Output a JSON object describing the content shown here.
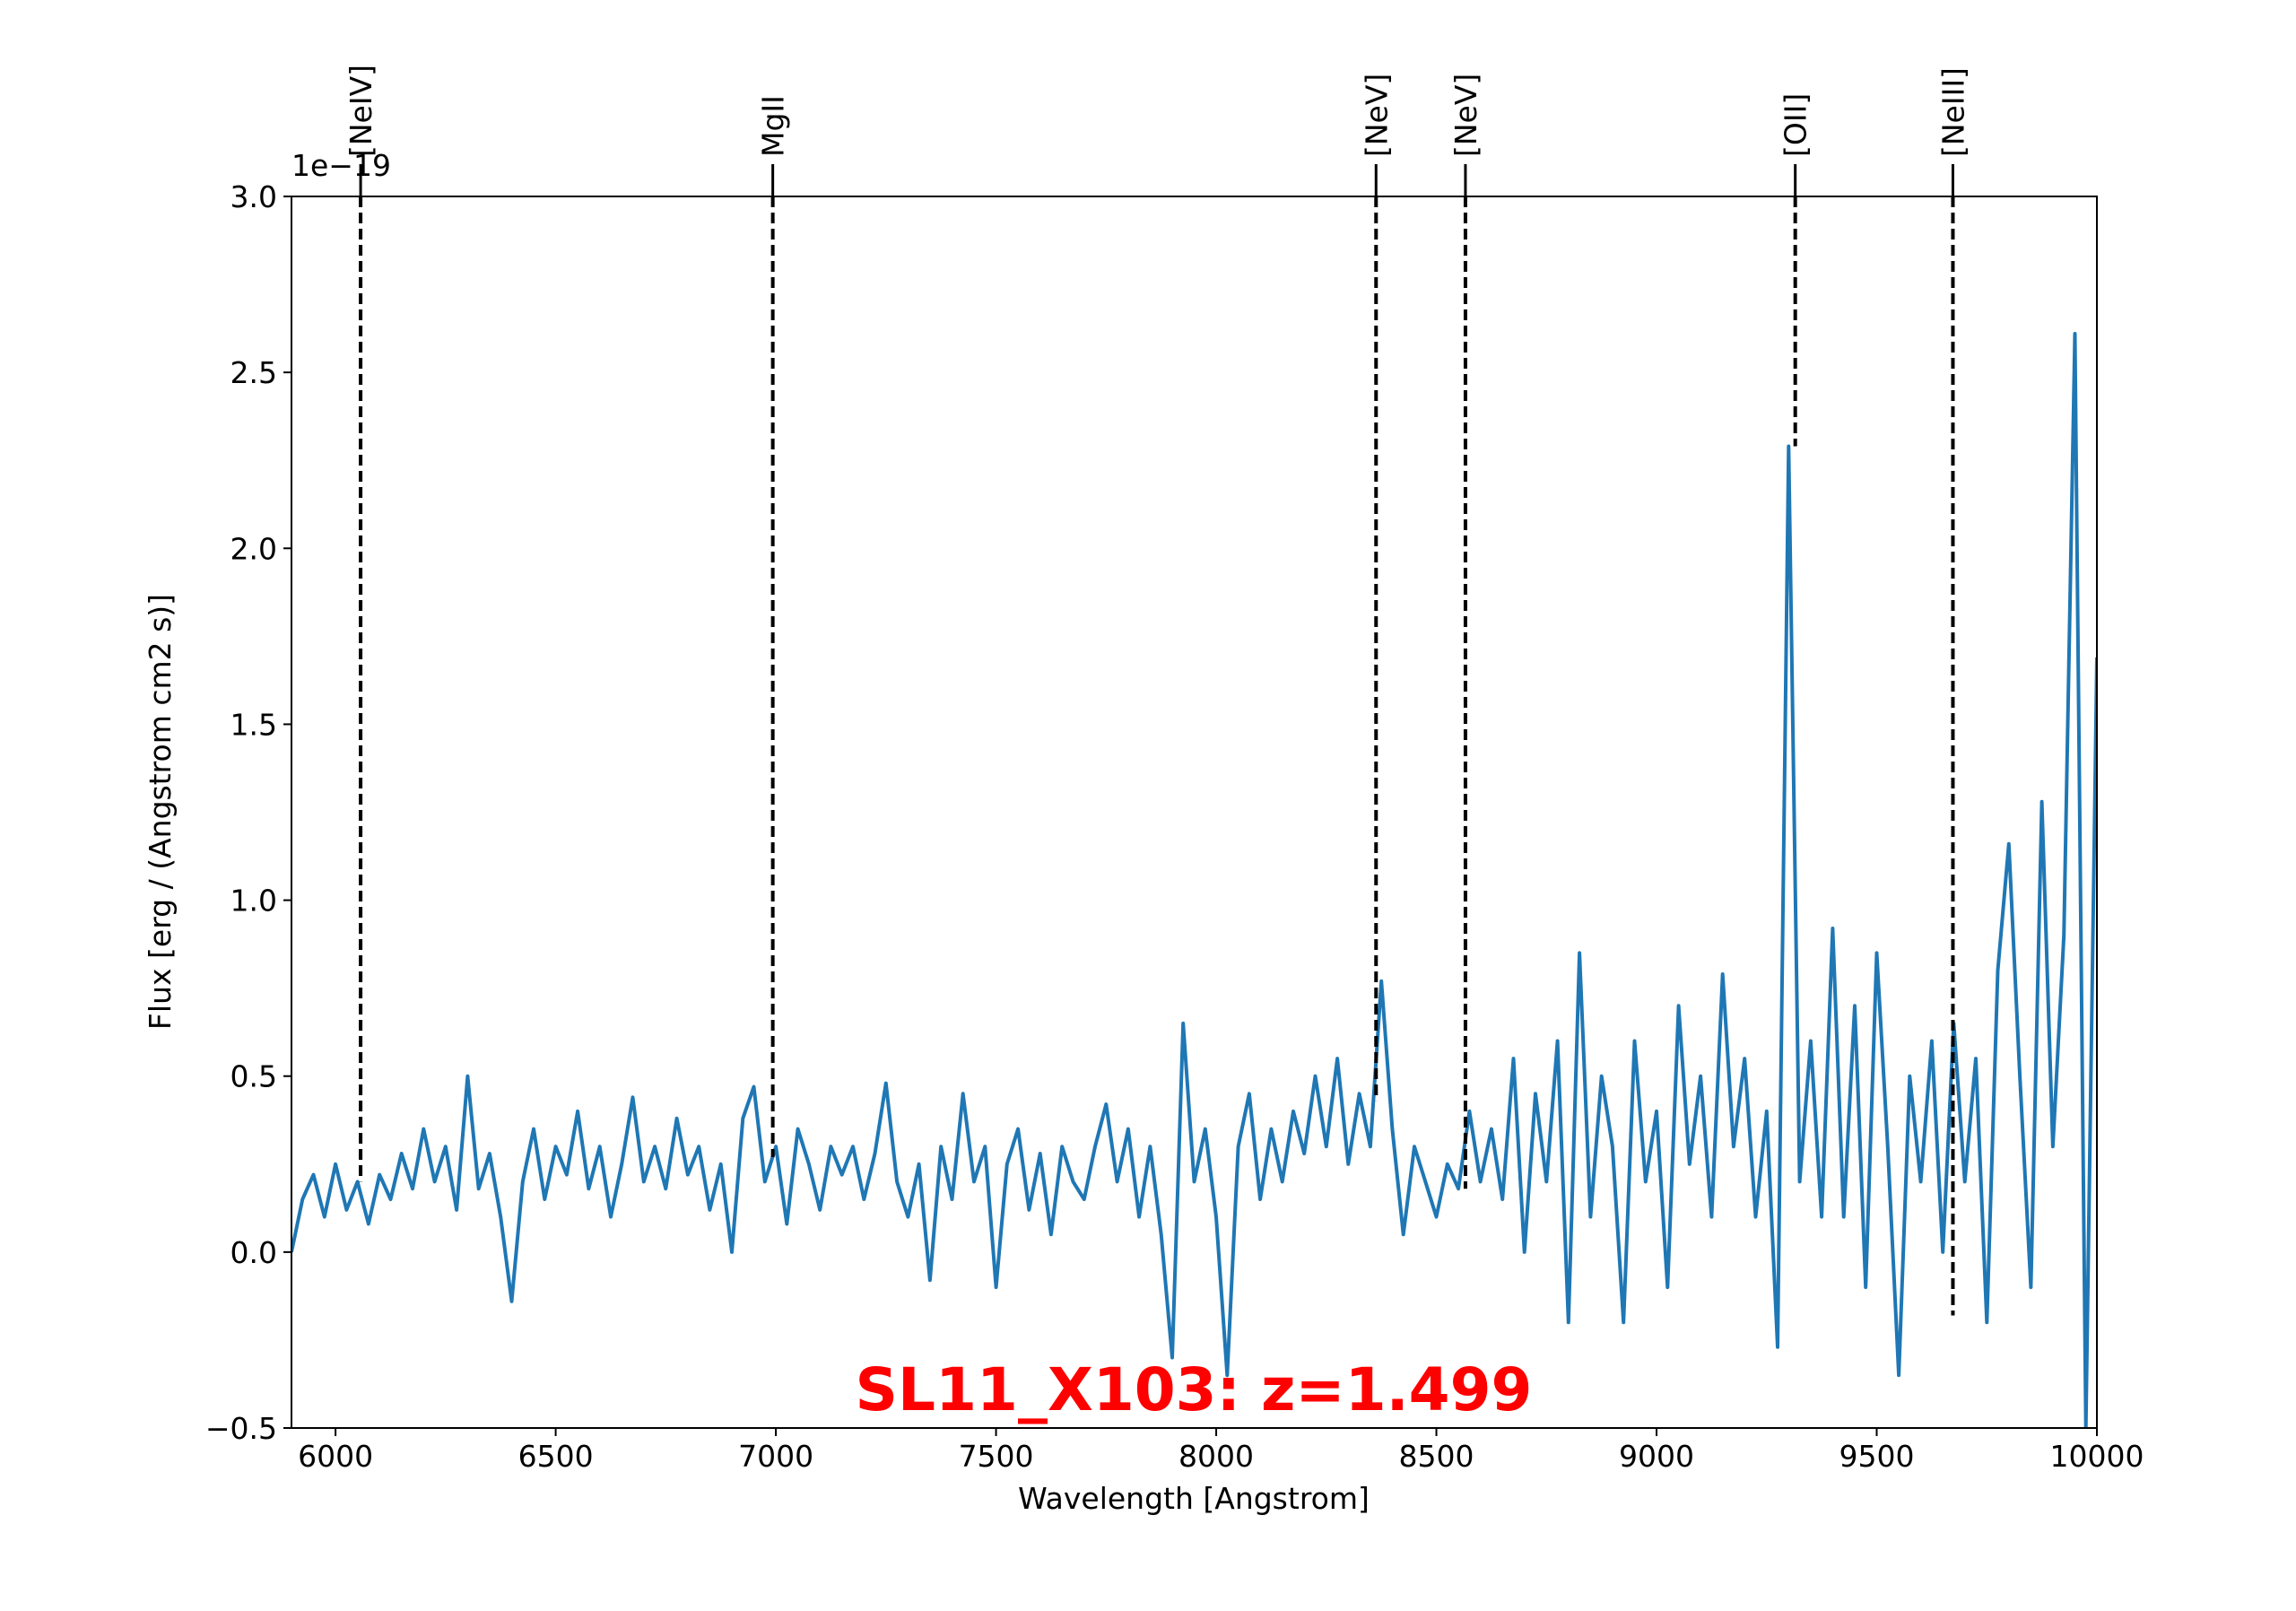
{
  "chart_data": {
    "type": "line",
    "title": "SL11_X103: z=1.499",
    "title_color": "#ff0000",
    "x_label": "Wavelength [Angstrom]",
    "y_label": "Flux [erg / (Angstrom cm2 s)]",
    "y_offset_text": "1e−19",
    "color": "#1f77b4",
    "xlim": [
      5900,
      10000
    ],
    "xticks": [
      6000,
      6500,
      7000,
      7500,
      8000,
      8500,
      9000,
      9500,
      10000
    ],
    "ylim": [
      -0.5,
      3.0
    ],
    "yticks": [
      {
        "value": -0.5,
        "label": "−0.5"
      },
      {
        "value": 0,
        "label": "0.0"
      },
      0.5,
      {
        "value": 1,
        "label": "1.0"
      },
      1.5,
      {
        "value": 2,
        "label": "2.0"
      },
      2.5,
      {
        "value": 3,
        "label": "3.0"
      }
    ],
    "x": [
      5900,
      5925,
      5950,
      5975,
      6000,
      6025,
      6050,
      6075,
      6100,
      6125,
      6150,
      6175,
      6200,
      6225,
      6250,
      6275,
      6300,
      6325,
      6350,
      6375,
      6400,
      6425,
      6450,
      6475,
      6500,
      6525,
      6550,
      6575,
      6600,
      6625,
      6650,
      6675,
      6700,
      6725,
      6750,
      6775,
      6800,
      6825,
      6850,
      6875,
      6900,
      6925,
      6950,
      6975,
      7000,
      7025,
      7050,
      7075,
      7100,
      7125,
      7150,
      7175,
      7200,
      7225,
      7250,
      7275,
      7300,
      7325,
      7350,
      7375,
      7400,
      7425,
      7450,
      7475,
      7500,
      7525,
      7550,
      7575,
      7600,
      7625,
      7650,
      7675,
      7700,
      7725,
      7750,
      7775,
      7800,
      7825,
      7850,
      7875,
      7900,
      7925,
      7950,
      7975,
      8000,
      8025,
      8050,
      8075,
      8100,
      8125,
      8150,
      8175,
      8200,
      8225,
      8250,
      8275,
      8300,
      8325,
      8350,
      8375,
      8400,
      8425,
      8450,
      8475,
      8500,
      8525,
      8550,
      8575,
      8600,
      8625,
      8650,
      8675,
      8700,
      8725,
      8750,
      8775,
      8800,
      8825,
      8850,
      8875,
      8900,
      8925,
      8950,
      8975,
      9000,
      9025,
      9050,
      9075,
      9100,
      9125,
      9150,
      9175,
      9200,
      9225,
      9250,
      9275,
      9300,
      9325,
      9350,
      9375,
      9400,
      9425,
      9450,
      9475,
      9500,
      9525,
      9550,
      9575,
      9600,
      9625,
      9650,
      9675,
      9700,
      9725,
      9750,
      9775,
      9800,
      9825,
      9850,
      9875,
      9900,
      9925,
      9950,
      9975,
      10000
    ],
    "values": [
      0.0,
      0.15,
      0.22,
      0.1,
      0.25,
      0.12,
      0.2,
      0.08,
      0.22,
      0.15,
      0.28,
      0.18,
      0.35,
      0.2,
      0.3,
      0.12,
      0.5,
      0.18,
      0.28,
      0.1,
      -0.14,
      0.2,
      0.35,
      0.15,
      0.3,
      0.22,
      0.4,
      0.18,
      0.3,
      0.1,
      0.25,
      0.44,
      0.2,
      0.3,
      0.18,
      0.38,
      0.22,
      0.3,
      0.12,
      0.25,
      0.0,
      0.38,
      0.47,
      0.2,
      0.3,
      0.08,
      0.35,
      0.25,
      0.12,
      0.3,
      0.22,
      0.3,
      0.15,
      0.28,
      0.48,
      0.2,
      0.1,
      0.25,
      -0.08,
      0.3,
      0.15,
      0.45,
      0.2,
      0.3,
      -0.1,
      0.25,
      0.35,
      0.12,
      0.28,
      0.05,
      0.3,
      0.2,
      0.15,
      0.3,
      0.42,
      0.2,
      0.35,
      0.1,
      0.3,
      0.05,
      -0.3,
      0.65,
      0.2,
      0.35,
      0.1,
      -0.35,
      0.3,
      0.45,
      0.15,
      0.35,
      0.2,
      0.4,
      0.28,
      0.5,
      0.3,
      0.55,
      0.25,
      0.45,
      0.3,
      0.77,
      0.35,
      0.05,
      0.3,
      0.2,
      0.1,
      0.25,
      0.18,
      0.4,
      0.2,
      0.35,
      0.15,
      0.55,
      0.0,
      0.45,
      0.2,
      0.6,
      -0.2,
      0.85,
      0.1,
      0.5,
      0.3,
      -0.2,
      0.6,
      0.2,
      0.4,
      -0.1,
      0.7,
      0.25,
      0.5,
      0.1,
      0.79,
      0.3,
      0.55,
      0.1,
      0.4,
      -0.27,
      2.29,
      0.2,
      0.6,
      0.1,
      0.92,
      0.1,
      0.7,
      -0.1,
      0.85,
      0.3,
      -0.35,
      0.5,
      0.2,
      0.6,
      0.0,
      0.65,
      0.2,
      0.55,
      -0.2,
      0.8,
      1.16,
      0.5,
      -0.1,
      1.28,
      0.3,
      0.9,
      2.61,
      -0.5,
      1.69
    ],
    "line_markers": [
      {
        "label": "[NeIV]",
        "wavelength": 6057,
        "flux": 0.2
      },
      {
        "label": "MgII",
        "wavelength": 6993,
        "flux": 0.27
      },
      {
        "label": "[NeV]",
        "wavelength": 8363,
        "flux": 0.43
      },
      {
        "label": "[NeV]",
        "wavelength": 8566,
        "flux": 0.18
      },
      {
        "label": "[OII]",
        "wavelength": 9315,
        "flux": 2.29
      },
      {
        "label": "[NeIII]",
        "wavelength": 9673,
        "flux": -0.18
      }
    ]
  }
}
